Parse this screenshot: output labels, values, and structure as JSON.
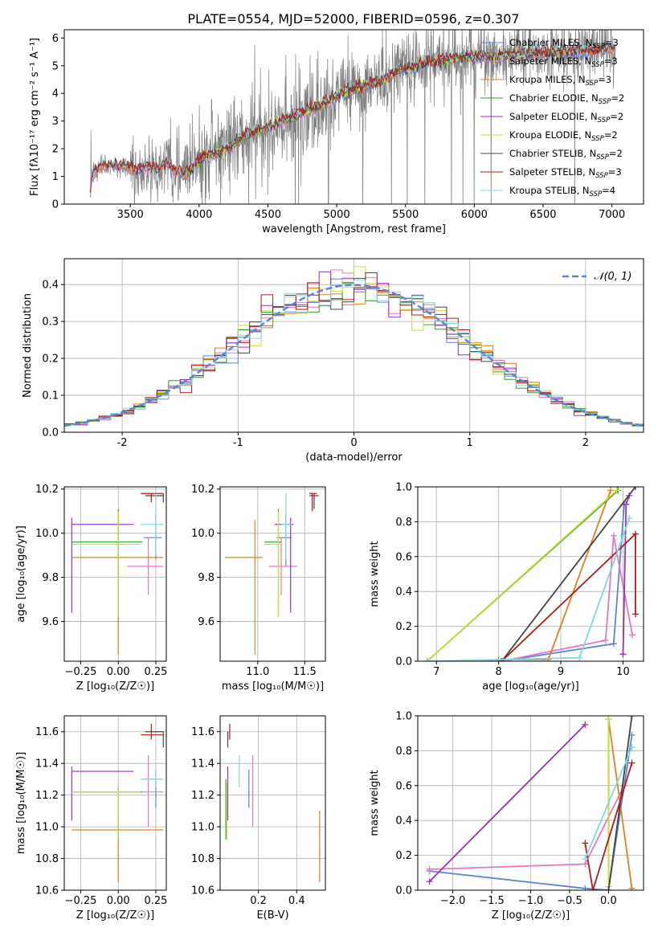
{
  "figure_title": "PLATE=0554, MJD=52000, FIBERID=0596, z=0.307",
  "colors": {
    "chabrier_miles": "#5b84d6",
    "salpeter_miles": "#e377c2",
    "kroupa_miles": "#e08020",
    "chabrier_elodie": "#2ca02c",
    "salpeter_elodie": "#9b30c0",
    "kroupa_elodie": "#cddc39",
    "chabrier_stelib": "#444444",
    "salpeter_stelib": "#b01c1c",
    "kroupa_stelib": "#80d8e0",
    "data": "#808080",
    "normal": "#5b84d6"
  },
  "legend_spectrum": [
    {
      "key": "chabrier_miles",
      "label": "Chabrier MILES, N",
      "sub": "SSP",
      "suffix": "=3"
    },
    {
      "key": "salpeter_miles",
      "label": "Salpeter MILES, N",
      "sub": "SSP",
      "suffix": "=3"
    },
    {
      "key": "kroupa_miles",
      "label": "Kroupa MILES, N",
      "sub": "SSP",
      "suffix": "=3"
    },
    {
      "key": "chabrier_elodie",
      "label": "Chabrier ELODIE, N",
      "sub": "SSP",
      "suffix": "=2"
    },
    {
      "key": "salpeter_elodie",
      "label": "Salpeter ELODIE, N",
      "sub": "SSP",
      "suffix": "=2"
    },
    {
      "key": "kroupa_elodie",
      "label": "Kroupa ELODIE, N",
      "sub": "SSP",
      "suffix": "=2"
    },
    {
      "key": "chabrier_stelib",
      "label": "Chabrier STELIB, N",
      "sub": "SSP",
      "suffix": "=2"
    },
    {
      "key": "salpeter_stelib",
      "label": "Salpeter STELIB, N",
      "sub": "SSP",
      "suffix": "=3"
    },
    {
      "key": "kroupa_stelib",
      "label": "Kroupa STELIB, N",
      "sub": "SSP",
      "suffix": "=4"
    }
  ],
  "legend_hist": {
    "label": "𝒩(0, 1)"
  },
  "chart_data": [
    {
      "id": "spectrum",
      "type": "line",
      "xlabel": "wavelength [Angstrom, rest frame]",
      "ylabel": "Flux [fλ10⁻¹⁷ erg cm⁻² s⁻¹ A⁻¹]",
      "xlim": [
        3020,
        7230
      ],
      "ylim": [
        0,
        6.3
      ],
      "xticks": [
        3500,
        4000,
        4500,
        5000,
        5500,
        6000,
        6500,
        7000
      ],
      "yticks": [
        0,
        1,
        2,
        3,
        4,
        5,
        6
      ],
      "grid": false,
      "legend": "top-right",
      "continuum": [
        [
          3210,
          0.4
        ],
        [
          3220,
          1.1
        ],
        [
          3300,
          1.4
        ],
        [
          3450,
          1.4
        ],
        [
          3520,
          1.25
        ],
        [
          3600,
          1.35
        ],
        [
          3700,
          1.25
        ],
        [
          3760,
          1.5
        ],
        [
          3830,
          1.15
        ],
        [
          3900,
          1.1
        ],
        [
          3950,
          1.25
        ],
        [
          3980,
          1.5
        ],
        [
          4050,
          1.75
        ],
        [
          4150,
          1.85
        ],
        [
          4250,
          2.15
        ],
        [
          4350,
          2.55
        ],
        [
          4450,
          2.7
        ],
        [
          4550,
          2.85
        ],
        [
          4650,
          3.15
        ],
        [
          4750,
          3.3
        ],
        [
          4850,
          3.5
        ],
        [
          4950,
          3.75
        ],
        [
          5050,
          4.05
        ],
        [
          5150,
          4.2
        ],
        [
          5250,
          4.35
        ],
        [
          5350,
          4.5
        ],
        [
          5450,
          4.85
        ],
        [
          5550,
          4.95
        ],
        [
          5650,
          5.1
        ],
        [
          5750,
          5.2
        ],
        [
          5850,
          5.25
        ],
        [
          5950,
          5.3
        ],
        [
          6050,
          5.35
        ],
        [
          6150,
          5.3
        ],
        [
          6250,
          5.38
        ],
        [
          6350,
          5.42
        ],
        [
          6450,
          5.45
        ],
        [
          6550,
          5.48
        ],
        [
          6650,
          5.5
        ],
        [
          6750,
          5.52
        ],
        [
          6850,
          5.55
        ],
        [
          6950,
          5.6
        ],
        [
          7030,
          5.62
        ]
      ]
    },
    {
      "id": "residuals",
      "type": "histogram",
      "xlabel": "(data-model)/error",
      "ylabel": "Normed distribution",
      "xlim": [
        -2.5,
        2.5
      ],
      "ylim": [
        0,
        0.47
      ],
      "xticks": [
        -2,
        -1,
        0,
        1,
        2
      ],
      "yticks": [
        0.0,
        0.1,
        0.2,
        0.3,
        0.4
      ],
      "grid": true,
      "legend": "top-right",
      "bin_width": 0.1,
      "model": "normal",
      "mean": 0,
      "sigma": 1
    },
    {
      "id": "age_vs_z",
      "type": "scatter",
      "xlabel": "Z [log₁₀(Z/Z☉)]",
      "ylabel": "age  [log₁₀(age/yr)]",
      "xlim": [
        -0.36,
        0.32
      ],
      "ylim": [
        9.42,
        10.21
      ],
      "xticks": [
        -0.25,
        0.0,
        0.25
      ],
      "xticklabels": [
        "−0.25",
        "0.00",
        "0.25"
      ],
      "yticks": [
        9.6,
        9.8,
        10.0,
        10.2
      ],
      "grid": true,
      "points": [
        {
          "key": "chabrier_miles",
          "x": 0.25,
          "xlo": 0.17,
          "xhi": 0.29,
          "y": 9.98,
          "ylo": 9.88,
          "yhi": 10.09
        },
        {
          "key": "salpeter_miles",
          "x": 0.2,
          "xlo": 0.06,
          "xhi": 0.3,
          "y": 9.85,
          "ylo": 9.72,
          "yhi": 9.98
        },
        {
          "key": "kroupa_miles",
          "x": 0.0,
          "xlo": -0.31,
          "xhi": 0.3,
          "y": 9.89,
          "ylo": 9.45,
          "yhi": 10.09
        },
        {
          "key": "chabrier_elodie",
          "x": 0.0,
          "xlo": -0.31,
          "xhi": 0.16,
          "y": 9.96,
          "ylo": 9.62,
          "yhi": 10.11
        },
        {
          "key": "salpeter_elodie",
          "x": -0.31,
          "xlo": -0.31,
          "xhi": 0.1,
          "y": 10.04,
          "ylo": 9.64,
          "yhi": 10.07
        },
        {
          "key": "kroupa_elodie",
          "x": 0.0,
          "xlo": -0.31,
          "xhi": 0.15,
          "y": 9.95,
          "ylo": 9.62,
          "yhi": 10.1
        },
        {
          "key": "chabrier_stelib",
          "x": 0.3,
          "xlo": 0.18,
          "xhi": 0.3,
          "y": 10.17,
          "ylo": 10.14,
          "yhi": 10.18
        },
        {
          "key": "salpeter_stelib",
          "x": 0.22,
          "xlo": 0.15,
          "xhi": 0.3,
          "y": 10.18,
          "ylo": 10.14,
          "yhi": 10.18
        },
        {
          "key": "kroupa_stelib",
          "x": 0.25,
          "xlo": 0.15,
          "xhi": 0.3,
          "y": 10.04,
          "ylo": 9.9,
          "yhi": 10.18
        }
      ]
    },
    {
      "id": "age_vs_mass",
      "type": "scatter",
      "xlabel": "mass [log₁₀(M/M☉)]",
      "ylabel": "",
      "xlim": [
        10.6,
        11.72
      ],
      "ylim": [
        9.42,
        10.21
      ],
      "xticks": [
        11.0,
        11.5
      ],
      "xticklabels": [
        "11.0",
        "11.5"
      ],
      "yticks": [
        9.6,
        9.8,
        10.0,
        10.2
      ],
      "grid": true,
      "points": [
        {
          "key": "chabrier_miles",
          "x": 11.3,
          "xlo": 11.2,
          "xhi": 11.36,
          "y": 9.98,
          "ylo": 9.85,
          "yhi": 10.09
        },
        {
          "key": "salpeter_miles",
          "x": 11.25,
          "xlo": 11.12,
          "xhi": 11.42,
          "y": 9.85,
          "ylo": 9.72,
          "yhi": 9.98
        },
        {
          "key": "kroupa_miles",
          "x": 10.97,
          "xlo": 10.65,
          "xhi": 11.05,
          "y": 9.89,
          "ylo": 9.45,
          "yhi": 10.06
        },
        {
          "key": "chabrier_elodie",
          "x": 11.22,
          "xlo": 11.07,
          "xhi": 11.25,
          "y": 9.96,
          "ylo": 9.62,
          "yhi": 10.11
        },
        {
          "key": "salpeter_elodie",
          "x": 11.35,
          "xlo": 11.18,
          "xhi": 11.38,
          "y": 10.04,
          "ylo": 9.64,
          "yhi": 10.07
        },
        {
          "key": "kroupa_elodie",
          "x": 11.22,
          "xlo": 11.07,
          "xhi": 11.26,
          "y": 9.95,
          "ylo": 9.62,
          "yhi": 10.1
        },
        {
          "key": "chabrier_stelib",
          "x": 11.6,
          "xlo": 11.55,
          "xhi": 11.65,
          "y": 10.17,
          "ylo": 10.11,
          "yhi": 10.18
        },
        {
          "key": "salpeter_stelib",
          "x": 11.58,
          "xlo": 11.55,
          "xhi": 11.63,
          "y": 10.18,
          "ylo": 10.1,
          "yhi": 10.18
        },
        {
          "key": "kroupa_stelib",
          "x": 11.3,
          "xlo": 11.25,
          "xhi": 11.36,
          "y": 10.04,
          "ylo": 9.88,
          "yhi": 10.18
        }
      ]
    },
    {
      "id": "weight_vs_age",
      "type": "line",
      "xlabel": "age  [log₁₀(age/yr)]",
      "ylabel": "mass weight",
      "xlim": [
        6.7,
        10.33
      ],
      "ylim": [
        0,
        1
      ],
      "xticks": [
        7,
        8,
        9,
        10
      ],
      "yticks": [
        0.0,
        0.2,
        0.4,
        0.6,
        0.8,
        1.0
      ],
      "grid": true,
      "series": [
        {
          "key": "chabrier_miles",
          "x": [
            6.85,
            8.05,
            9.85,
            10.02,
            10.02
          ],
          "y": [
            0.0,
            0.0,
            0.1,
            0.9,
            0.9
          ]
        },
        {
          "key": "salpeter_miles",
          "x": [
            8.05,
            9.72,
            9.85,
            10.15
          ],
          "y": [
            0.0,
            0.12,
            0.72,
            0.15
          ]
        },
        {
          "key": "kroupa_miles",
          "x": [
            8.0,
            8.8,
            9.8
          ],
          "y": [
            0.01,
            0.01,
            0.98
          ]
        },
        {
          "key": "chabrier_elodie",
          "x": [
            6.85,
            9.92
          ],
          "y": [
            0.0,
            0.98
          ]
        },
        {
          "key": "salpeter_elodie",
          "x": [
            10.0,
            10.05,
            10.1
          ],
          "y": [
            0.04,
            0.9,
            0.95
          ]
        },
        {
          "key": "kroupa_elodie",
          "x": [
            6.85,
            9.9
          ],
          "y": [
            0.0,
            0.98
          ]
        },
        {
          "key": "chabrier_stelib",
          "x": [
            8.05,
            10.2
          ],
          "y": [
            0.0,
            1.0
          ]
        },
        {
          "key": "salpeter_stelib",
          "x": [
            8.05,
            10.2,
            10.2
          ],
          "y": [
            0.0,
            0.73,
            0.27
          ]
        },
        {
          "key": "kroupa_stelib",
          "x": [
            6.85,
            9.3,
            10.0,
            10.1
          ],
          "y": [
            0.0,
            0.02,
            0.72,
            0.82
          ]
        }
      ]
    },
    {
      "id": "mass_vs_z",
      "type": "scatter",
      "xlabel": "Z [log₁₀(Z/Z☉)]",
      "ylabel": "mass [log₁₀(M/M☉)]",
      "xlim": [
        -0.36,
        0.32
      ],
      "ylim": [
        10.6,
        11.7
      ],
      "xticks": [
        -0.25,
        0.0,
        0.25
      ],
      "xticklabels": [
        "−0.25",
        "0.00",
        "0.25"
      ],
      "yticks": [
        10.6,
        10.8,
        11.0,
        11.2,
        11.4,
        11.6
      ],
      "grid": true,
      "points": [
        {
          "key": "chabrier_miles",
          "x": 0.25,
          "xlo": 0.17,
          "xhi": 0.29,
          "y": 11.3,
          "ylo": 11.12,
          "yhi": 11.36
        },
        {
          "key": "salpeter_miles",
          "x": 0.2,
          "xlo": 0.06,
          "xhi": 0.3,
          "y": 11.22,
          "ylo": 11.0,
          "yhi": 11.45
        },
        {
          "key": "kroupa_miles",
          "x": 0.0,
          "xlo": -0.31,
          "xhi": 0.3,
          "y": 10.98,
          "ylo": 10.65,
          "yhi": 11.05
        },
        {
          "key": "chabrier_elodie",
          "x": 0.0,
          "xlo": -0.31,
          "xhi": 0.16,
          "y": 11.22,
          "ylo": 10.92,
          "yhi": 11.26
        },
        {
          "key": "salpeter_elodie",
          "x": -0.31,
          "xlo": -0.31,
          "xhi": 0.1,
          "y": 11.35,
          "ylo": 11.04,
          "yhi": 11.38
        },
        {
          "key": "kroupa_elodie",
          "x": 0.0,
          "xlo": -0.31,
          "xhi": 0.15,
          "y": 11.22,
          "ylo": 10.92,
          "yhi": 11.26
        },
        {
          "key": "chabrier_stelib",
          "x": 0.3,
          "xlo": 0.18,
          "xhi": 0.3,
          "y": 11.6,
          "ylo": 11.5,
          "yhi": 11.6
        },
        {
          "key": "salpeter_stelib",
          "x": 0.22,
          "xlo": 0.15,
          "xhi": 0.3,
          "y": 11.58,
          "ylo": 11.55,
          "yhi": 11.65
        },
        {
          "key": "kroupa_stelib",
          "x": 0.25,
          "xlo": 0.15,
          "xhi": 0.3,
          "y": 11.3,
          "ylo": 11.25,
          "yhi": 11.36
        }
      ]
    },
    {
      "id": "mass_vs_ebv",
      "type": "scatter",
      "xlabel": "E(B-V)",
      "ylabel": "",
      "xlim": [
        0.0,
        0.55
      ],
      "ylim": [
        10.6,
        11.7
      ],
      "xticks": [
        0.2,
        0.4
      ],
      "xticklabels": [
        "0.2",
        "0.4"
      ],
      "yticks": [
        10.6,
        10.8,
        11.0,
        11.2,
        11.4,
        11.6
      ],
      "grid": true,
      "points": [
        {
          "key": "chabrier_miles",
          "x": 0.15,
          "y": 11.22,
          "ylo": 11.12,
          "yhi": 11.36
        },
        {
          "key": "salpeter_miles",
          "x": 0.17,
          "y": 11.22,
          "ylo": 11.0,
          "yhi": 11.45
        },
        {
          "key": "kroupa_miles",
          "x": 0.52,
          "y": 10.9,
          "ylo": 10.65,
          "yhi": 11.1
        },
        {
          "key": "chabrier_elodie",
          "x": 0.03,
          "y": 11.2,
          "ylo": 10.92,
          "yhi": 11.3
        },
        {
          "key": "salpeter_elodie",
          "x": 0.04,
          "y": 11.25,
          "ylo": 11.04,
          "yhi": 11.38
        },
        {
          "key": "kroupa_elodie",
          "x": 0.035,
          "y": 11.15,
          "ylo": 10.92,
          "yhi": 11.28
        },
        {
          "key": "chabrier_stelib",
          "x": 0.04,
          "y": 11.55,
          "ylo": 11.5,
          "yhi": 11.6
        },
        {
          "key": "salpeter_stelib",
          "x": 0.05,
          "y": 11.6,
          "ylo": 11.55,
          "yhi": 11.65
        },
        {
          "key": "kroupa_stelib",
          "x": 0.1,
          "y": 11.35,
          "ylo": 11.25,
          "yhi": 11.45
        }
      ]
    },
    {
      "id": "weight_vs_z",
      "type": "line",
      "xlabel": "Z [log₁₀(Z/Z☉)]",
      "ylabel": "mass weight",
      "xlim": [
        -2.45,
        0.45
      ],
      "ylim": [
        0,
        1
      ],
      "xticks": [
        -2.0,
        -1.5,
        -1.0,
        -0.5,
        0.0
      ],
      "xticklabels": [
        "−2.0",
        "−1.5",
        "−1.0",
        "−0.5",
        "0.0"
      ],
      "yticks": [
        0.0,
        0.2,
        0.4,
        0.6,
        0.8,
        1.0
      ],
      "grid": true,
      "series": [
        {
          "key": "chabrier_miles",
          "x": [
            -2.3,
            -0.3,
            0.0,
            0.3
          ],
          "y": [
            0.11,
            0.01,
            0.0,
            0.89
          ]
        },
        {
          "key": "salpeter_miles",
          "x": [
            -2.3,
            -0.3,
            0.2
          ],
          "y": [
            0.12,
            0.15,
            0.6
          ]
        },
        {
          "key": "kroupa_miles",
          "x": [
            0.0,
            0.3
          ],
          "y": [
            0.98,
            0.01
          ]
        },
        {
          "key": "chabrier_elodie",
          "x": [
            0.0,
            0.0
          ],
          "y": [
            0.0,
            0.98
          ]
        },
        {
          "key": "salpeter_elodie",
          "x": [
            -2.3,
            -0.3
          ],
          "y": [
            0.05,
            0.95
          ]
        },
        {
          "key": "kroupa_elodie",
          "x": [
            0.0,
            0.0
          ],
          "y": [
            0.02,
            0.98
          ]
        },
        {
          "key": "chabrier_stelib",
          "x": [
            0.0,
            0.3
          ],
          "y": [
            0.0,
            1.0
          ]
        },
        {
          "key": "salpeter_stelib",
          "x": [
            -0.3,
            -0.2,
            0.3
          ],
          "y": [
            0.27,
            0.0,
            0.73
          ]
        },
        {
          "key": "kroupa_stelib",
          "x": [
            -0.3,
            0.3
          ],
          "y": [
            0.18,
            0.82
          ]
        }
      ]
    }
  ]
}
